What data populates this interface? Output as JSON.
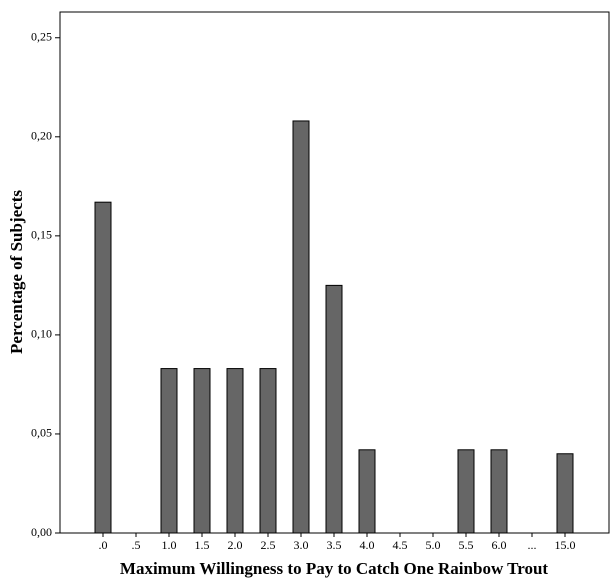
{
  "chart_data": {
    "type": "bar",
    "x_label": "Maximum Willingness to Pay to Catch One Rainbow Trout",
    "y_label": "Percentage of Subjects",
    "categories": [
      ".0",
      ".5",
      "1.0",
      "1.5",
      "2.0",
      "2.5",
      "3.0",
      "3.5",
      "4.0",
      "4.5",
      "5.0",
      "5.5",
      "6.0",
      "...",
      "15.0"
    ],
    "values": [
      0.167,
      0,
      0.083,
      0.083,
      0.083,
      0.083,
      0.208,
      0.125,
      0.042,
      0,
      0,
      0.042,
      0.042,
      0,
      0.04
    ],
    "color": "#666666",
    "ylim": [
      0,
      0.263
    ],
    "yticks": [
      {
        "value": 0,
        "label": "0,00"
      },
      {
        "value": 0.05,
        "label": "0,05"
      },
      {
        "value": 0.1,
        "label": "0,10"
      },
      {
        "value": 0.15,
        "label": "0,15"
      },
      {
        "value": 0.2,
        "label": "0,20"
      },
      {
        "value": 0.25,
        "label": "0,25"
      }
    ],
    "grid": false
  }
}
